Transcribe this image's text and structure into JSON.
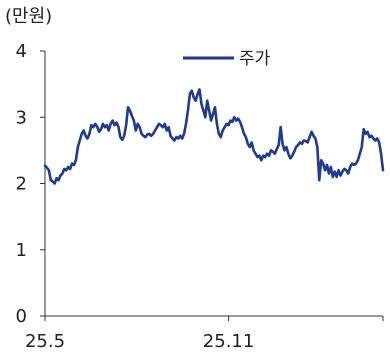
{
  "chart_data": {
    "type": "line",
    "unit_label": "(만원)",
    "yticks": [
      "0",
      "1",
      "2",
      "3",
      "4"
    ],
    "ylim": [
      0,
      4
    ],
    "xticks": [
      {
        "label": "25.5",
        "x": 0
      },
      {
        "label": "25.11",
        "x": 126
      }
    ],
    "xlim": [
      0,
      232
    ],
    "grid": false,
    "legend_position": "top-center",
    "series": [
      {
        "name": "주가",
        "color": "#1f3a93",
        "values": [
          2.27,
          2.24,
          2.2,
          2.05,
          2.03,
          2.0,
          2.08,
          2.05,
          2.12,
          2.15,
          2.22,
          2.2,
          2.25,
          2.22,
          2.3,
          2.28,
          2.35,
          2.55,
          2.65,
          2.75,
          2.8,
          2.72,
          2.68,
          2.75,
          2.88,
          2.85,
          2.9,
          2.86,
          2.78,
          2.82,
          2.9,
          2.85,
          2.88,
          2.8,
          2.9,
          2.95,
          2.88,
          2.92,
          2.86,
          2.7,
          2.66,
          2.72,
          2.88,
          3.15,
          3.1,
          3.02,
          2.95,
          2.8,
          2.9,
          2.85,
          2.75,
          2.72,
          2.7,
          2.74,
          2.75,
          2.72,
          2.75,
          2.8,
          2.85,
          2.9,
          2.88,
          2.85,
          2.9,
          2.8,
          2.85,
          2.72,
          2.68,
          2.65,
          2.7,
          2.68,
          2.72,
          2.68,
          2.75,
          2.9,
          3.1,
          3.35,
          3.4,
          3.3,
          3.25,
          3.35,
          3.42,
          3.2,
          3.1,
          3.0,
          3.25,
          3.1,
          2.95,
          3.05,
          3.15,
          2.9,
          2.75,
          2.7,
          2.8,
          2.85,
          2.9,
          2.88,
          2.95,
          2.93,
          3.0,
          2.95,
          2.98,
          2.93,
          2.85,
          2.75,
          2.7,
          2.6,
          2.55,
          2.62,
          2.5,
          2.45,
          2.4,
          2.42,
          2.35,
          2.42,
          2.4,
          2.45,
          2.42,
          2.5,
          2.48,
          2.45,
          2.52,
          2.58,
          2.85,
          2.6,
          2.5,
          2.55,
          2.45,
          2.38,
          2.42,
          2.48,
          2.55,
          2.58,
          2.62,
          2.6,
          2.65,
          2.64,
          2.62,
          2.7,
          2.78,
          2.72,
          2.68,
          2.55,
          2.05,
          2.35,
          2.3,
          2.2,
          2.28,
          2.15,
          2.25,
          2.1,
          2.18,
          2.1,
          2.2,
          2.12,
          2.18,
          2.22,
          2.2,
          2.15,
          2.25,
          2.3,
          2.28,
          2.3,
          2.35,
          2.45,
          2.55,
          2.82,
          2.75,
          2.78,
          2.7,
          2.72,
          2.68,
          2.65,
          2.68,
          2.62,
          2.45,
          2.2
        ]
      }
    ]
  }
}
